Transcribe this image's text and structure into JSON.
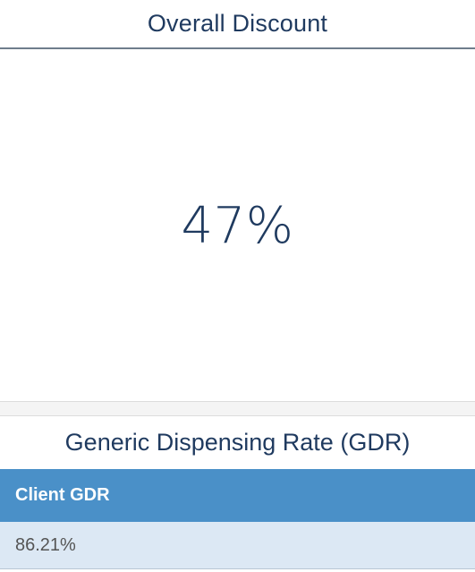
{
  "overall_discount": {
    "title": "Overall Discount",
    "value": "47%"
  },
  "gdr": {
    "title": "Generic Dispensing Rate (GDR)",
    "columns": [
      "Client GDR"
    ],
    "rows": [
      [
        "86.21%"
      ]
    ]
  },
  "colors": {
    "title_text": "#1f3a5f",
    "table_header_bg": "#4a90c8",
    "table_row_bg": "#dce8f4"
  }
}
